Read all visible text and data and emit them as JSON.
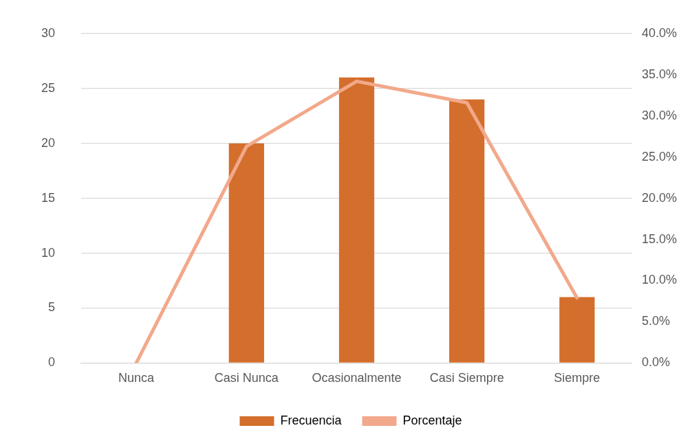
{
  "chart_data": {
    "type": "bar",
    "categories": [
      "Nunca",
      "Casi Nunca",
      "Ocasionalmente",
      "Casi Siempre",
      "Siempre"
    ],
    "series": [
      {
        "name": "Frecuencia",
        "color": "#d46e2c",
        "values": [
          0,
          20,
          26,
          24,
          6
        ]
      },
      {
        "name": "Porcentaje",
        "type": "line",
        "axis": "y2",
        "color": "#f2a88a",
        "values": [
          0,
          26.3,
          34.2,
          31.6,
          7.9
        ]
      }
    ],
    "ylim": [
      0,
      30
    ],
    "yticks": [
      0,
      5,
      10,
      15,
      20,
      25,
      30
    ],
    "y2lim": [
      0,
      40
    ],
    "y2ticks": [
      {
        "value": 0,
        "label": "0.0%"
      },
      {
        "value": 5,
        "label": "5.0%"
      },
      {
        "value": 10,
        "label": "10.0%"
      },
      {
        "value": 15,
        "label": "15.0%"
      },
      {
        "value": 20,
        "label": "20.0%"
      },
      {
        "value": 25,
        "label": "25.0%"
      },
      {
        "value": 30,
        "label": "30.0%"
      },
      {
        "value": 35,
        "label": "35.0%"
      },
      {
        "value": 40,
        "label": "40.0%"
      }
    ],
    "grid": "y",
    "legend": "bottom",
    "marker": "none"
  }
}
